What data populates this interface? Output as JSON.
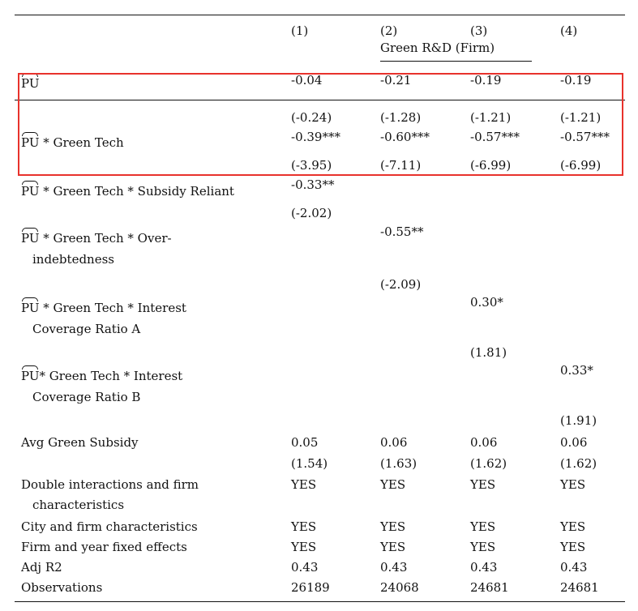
{
  "header": {
    "col_nums": [
      "(1)",
      "(2)",
      "(3)",
      "(4)"
    ],
    "dep_var": "Green R&D (Firm)"
  },
  "rows": {
    "pu": {
      "hat_text": "PU",
      "suffix": "",
      "vals": [
        "-0.04",
        "-0.21",
        "-0.19",
        "-0.19"
      ]
    },
    "pu_green": {
      "hat_text": "PU",
      "suffix": " * Green Tech",
      "tstats_above": [
        "(-0.24)",
        "(-1.28)",
        "(-1.21)",
        "(-1.21)"
      ],
      "vals": [
        "-0.39***",
        "-0.60***",
        "-0.57***",
        "-0.57***"
      ],
      "tstats": [
        "(-3.95)",
        "(-7.11)",
        "(-6.99)",
        "(-6.99)"
      ]
    },
    "subsidy": {
      "hat_text": "PU",
      "suffix": " * Green Tech * Subsidy Reliant",
      "val": "-0.33**",
      "tstat": "(-2.02)"
    },
    "overindebt": {
      "hat_text": "PU",
      "line1": " * Green Tech * Over-",
      "line2": "indebtedness",
      "val": "-0.55**",
      "tstat": "(-2.09)"
    },
    "icr_a": {
      "hat_text": "PU",
      "line1": " * Green Tech * Interest",
      "line2": "Coverage Ratio A",
      "val": "0.30*",
      "tstat": "(1.81)"
    },
    "icr_b": {
      "hat_text": "PU",
      "line1": "* Green Tech * Interest",
      "line2": "Coverage Ratio B",
      "val": "0.33*",
      "tstat": "(1.91)"
    },
    "avg_subsidy": {
      "label": "Avg Green Subsidy",
      "vals": [
        "0.05",
        "0.06",
        "0.06",
        "0.06"
      ],
      "tstats": [
        "(1.54)",
        "(1.63)",
        "(1.62)",
        "(1.62)"
      ]
    },
    "double": {
      "line1": "Double interactions and firm",
      "line2": "characteristics",
      "vals": [
        "YES",
        "YES",
        "YES",
        "YES"
      ]
    },
    "city": {
      "label": "City and firm characteristics",
      "vals": [
        "YES",
        "YES",
        "YES",
        "YES"
      ]
    },
    "fe": {
      "label": "Firm and year fixed effects",
      "vals": [
        "YES",
        "YES",
        "YES",
        "YES"
      ]
    },
    "adjr2": {
      "label": "Adj R2",
      "vals": [
        "0.43",
        "0.43",
        "0.43",
        "0.43"
      ]
    },
    "obs": {
      "label": "Observations",
      "vals": [
        "26189",
        "24068",
        "24681",
        "24681"
      ]
    }
  },
  "colors": {
    "highlight": "#e8322c",
    "text": "#111111"
  }
}
